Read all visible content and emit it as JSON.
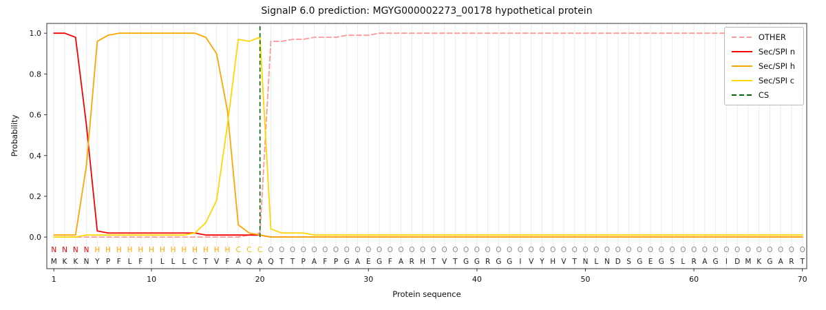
{
  "title": "SignalP 6.0 prediction: MGYG000002273_00178 hypothetical protein",
  "xlabel": "Protein sequence",
  "ylabel": "Probability",
  "legend": {
    "items": [
      {
        "label": "OTHER",
        "color": "#ff9999",
        "dash": true
      },
      {
        "label": "Sec/SPI n",
        "color": "#f40000",
        "dash": false
      },
      {
        "label": "Sec/SPI h",
        "color": "#ffa500",
        "dash": false
      },
      {
        "label": "Sec/SPI c",
        "color": "#ffd700",
        "dash": false
      },
      {
        "label": "CS",
        "color": "#006400",
        "dash": true
      }
    ]
  },
  "chart_data": {
    "type": "line",
    "title": "SignalP 6.0 prediction: MGYG000002273_00178 hypothetical protein",
    "xlabel": "Protein sequence",
    "ylabel": "Probability",
    "xlim": [
      0.35,
      70.4
    ],
    "ylim": [
      -0.155,
      1.048
    ],
    "xticks": [
      1,
      10,
      20,
      30,
      40,
      50,
      60,
      70
    ],
    "yticks": [
      0.0,
      0.2,
      0.4,
      0.6,
      0.8,
      1.0
    ],
    "grid": "vertical-per-residue",
    "legend_position": "upper right",
    "cs_position": 20,
    "cs_color": "#006400",
    "sequence": "MKKNYPFLFILLLCTVFAQAQTTPAFPGAEGFARHTVTGGRGGIVYHVTNLNDSGEGSLRAGIDMKGART",
    "regions": "NNNNHHHHHHHHHHHHHCCCOOOOOOOOOOOOOOOOOOOOOOOOOOOOOOOOOOOOOOOOOOOOOOOOOO",
    "region_colors": {
      "N": "#f40000",
      "H": "#ffa500",
      "C": "#e6c300",
      "O": "#8c8c8c"
    },
    "sequence_color": "#222222",
    "series": [
      {
        "name": "OTHER",
        "color": "#ff9999",
        "dashed": true,
        "values": [
          0,
          0,
          0,
          0,
          0,
          0,
          0,
          0,
          0,
          0,
          0,
          0,
          0,
          0,
          0,
          0,
          0,
          0,
          0.01,
          0.02,
          0.96,
          0.96,
          0.97,
          0.97,
          0.98,
          0.98,
          0.98,
          0.99,
          0.99,
          0.99,
          1,
          1,
          1,
          1,
          1,
          1,
          1,
          1,
          1,
          1,
          1,
          1,
          1,
          1,
          1,
          1,
          1,
          1,
          1,
          1,
          1,
          1,
          1,
          1,
          1,
          1,
          1,
          1,
          1,
          1,
          1,
          1,
          1,
          1,
          1,
          1,
          1,
          1,
          1,
          1
        ]
      },
      {
        "name": "Sec/SPI n",
        "color": "#f40000",
        "dashed": false,
        "values": [
          1,
          1,
          0.98,
          0.55,
          0.03,
          0.02,
          0.02,
          0.02,
          0.02,
          0.02,
          0.02,
          0.02,
          0.02,
          0.02,
          0.01,
          0.01,
          0.01,
          0.01,
          0.01,
          0.01,
          0,
          0,
          0,
          0,
          0,
          0,
          0,
          0,
          0,
          0,
          0,
          0,
          0,
          0,
          0,
          0,
          0,
          0,
          0,
          0,
          0,
          0,
          0,
          0,
          0,
          0,
          0,
          0,
          0,
          0,
          0,
          0,
          0,
          0,
          0,
          0,
          0,
          0,
          0,
          0,
          0,
          0,
          0,
          0,
          0,
          0,
          0,
          0,
          0,
          0
        ]
      },
      {
        "name": "Sec/SPI h",
        "color": "#ffa500",
        "dashed": false,
        "values": [
          0.01,
          0.01,
          0.01,
          0.35,
          0.96,
          0.99,
          1,
          1,
          1,
          1,
          1,
          1,
          1,
          1,
          0.98,
          0.9,
          0.62,
          0.06,
          0.02,
          0.01,
          0,
          0,
          0,
          0,
          0,
          0,
          0,
          0,
          0,
          0,
          0,
          0,
          0,
          0,
          0,
          0,
          0,
          0,
          0,
          0,
          0,
          0,
          0,
          0,
          0,
          0,
          0,
          0,
          0,
          0,
          0,
          0,
          0,
          0,
          0,
          0,
          0,
          0,
          0,
          0,
          0,
          0,
          0,
          0,
          0,
          0,
          0,
          0,
          0,
          0
        ]
      },
      {
        "name": "Sec/SPI c",
        "color": "#ffd700",
        "dashed": false,
        "values": [
          0,
          0,
          0,
          0.01,
          0.01,
          0.01,
          0.01,
          0.01,
          0.01,
          0.01,
          0.01,
          0.01,
          0.01,
          0.02,
          0.07,
          0.18,
          0.55,
          0.97,
          0.96,
          0.98,
          0.04,
          0.02,
          0.02,
          0.02,
          0.01,
          0.01,
          0.01,
          0.01,
          0.01,
          0.01,
          0.01,
          0.01,
          0.01,
          0.01,
          0.01,
          0.01,
          0.01,
          0.01,
          0.01,
          0.01,
          0.01,
          0.01,
          0.01,
          0.01,
          0.01,
          0.01,
          0.01,
          0.01,
          0.01,
          0.01,
          0.01,
          0.01,
          0.01,
          0.01,
          0.01,
          0.01,
          0.01,
          0.01,
          0.01,
          0.01,
          0.01,
          0.01,
          0.01,
          0.01,
          0.01,
          0.01,
          0.01,
          0.01,
          0.01,
          0.01
        ]
      }
    ]
  }
}
